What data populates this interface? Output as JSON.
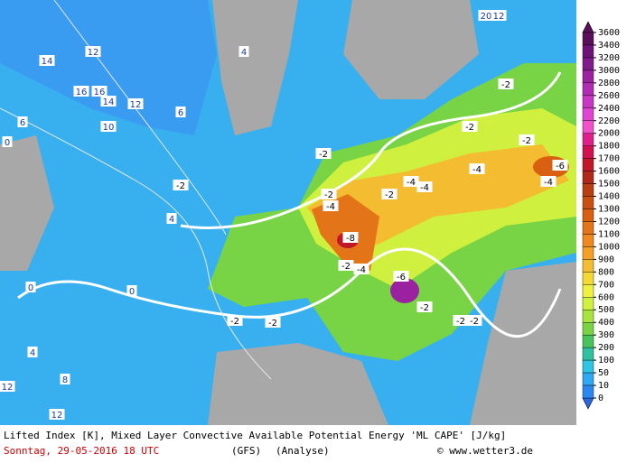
{
  "legend": {
    "levels": [
      3600,
      3400,
      3200,
      3000,
      2800,
      2600,
      2400,
      2200,
      2000,
      1800,
      1700,
      1600,
      1500,
      1400,
      1300,
      1200,
      1100,
      1000,
      900,
      800,
      700,
      600,
      500,
      400,
      300,
      200,
      100,
      50,
      10,
      0
    ],
    "colors": [
      "#5a0f5a",
      "#6e1478",
      "#821a8c",
      "#9a22a0",
      "#b02cb2",
      "#c838c4",
      "#e044d2",
      "#f050c8",
      "#e0208a",
      "#d01050",
      "#c01828",
      "#b02818",
      "#b84010",
      "#c85010",
      "#d86010",
      "#e47418",
      "#f08820",
      "#f4a028",
      "#f4bc30",
      "#f4d834",
      "#f0f040",
      "#d0f040",
      "#a8e440",
      "#78d444",
      "#48c45a",
      "#30c0a0",
      "#30c4e4",
      "#30a8f4",
      "#2c88f0",
      "#2868e0"
    ]
  },
  "map": {
    "contour_labels": [
      "14",
      "12",
      "16",
      "16",
      "14",
      "12",
      "10",
      "0",
      "6",
      "-2",
      "4",
      "-2",
      "-2",
      "-4",
      "-8",
      "-2",
      "-4",
      "-6",
      "-2",
      "-4",
      "-2",
      "-4",
      "-4",
      "-6",
      "-4",
      "-2",
      "-2",
      "-2",
      "-2",
      "-2",
      "0",
      "0",
      "-2",
      "-2",
      "4",
      "8",
      "12",
      "12",
      "6",
      "4",
      "20",
      "12"
    ]
  },
  "footer": {
    "title": "Lifted Index [K], Mixed Layer Convective Available Potential Energy 'ML CAPE' [J/kg]",
    "date": "Sonntag, 29-05-2016  18 UTC",
    "model": "(GFS)",
    "run": "(Analyse)",
    "credit": "© www.wetter3.de"
  }
}
